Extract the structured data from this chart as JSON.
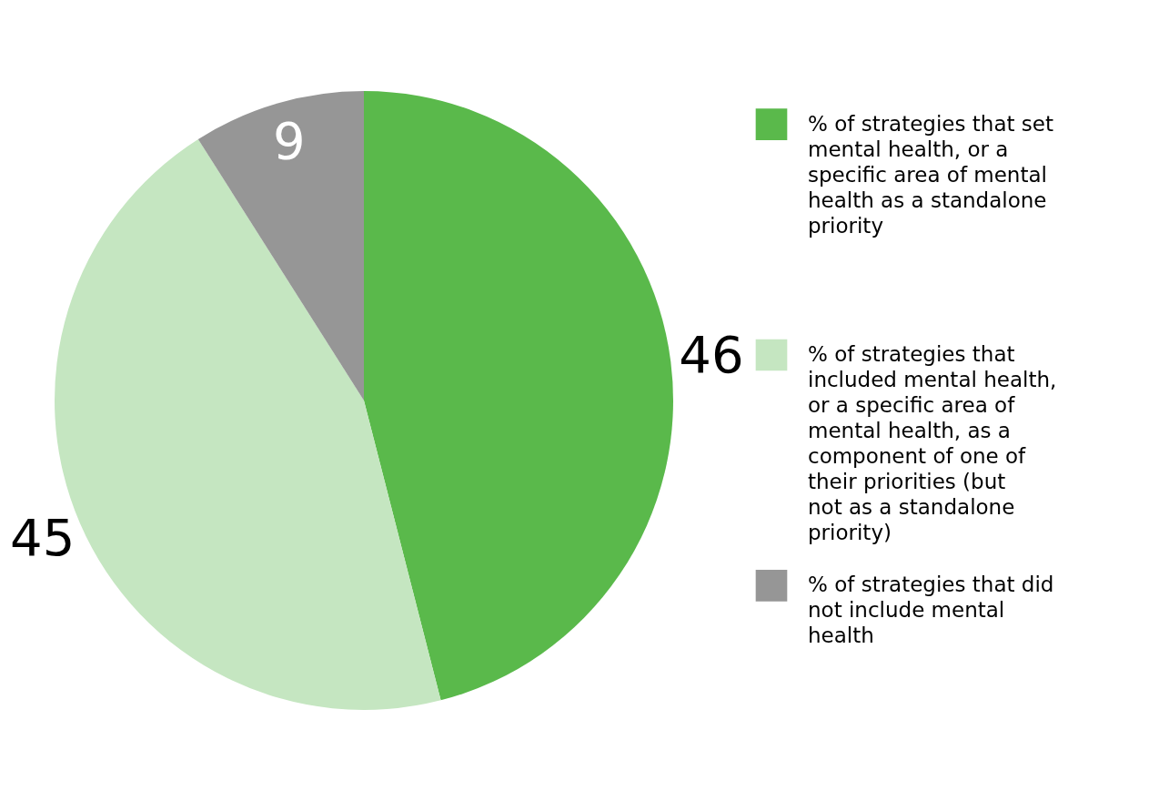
{
  "chart_data": {
    "type": "pie",
    "categories": [
      "% of strategies that set mental health, or a specific area of mental health as a standalone priority",
      "% of strategies that included mental health, or a specific area of mental health, as a component of one of their priorities (but not as a standalone priority)",
      "% of strategies that did not include mental health"
    ],
    "values": [
      46,
      45,
      9
    ],
    "colors": [
      "#5ab94b",
      "#c5e6c1",
      "#969696"
    ],
    "data_labels": true,
    "legend": "right"
  }
}
